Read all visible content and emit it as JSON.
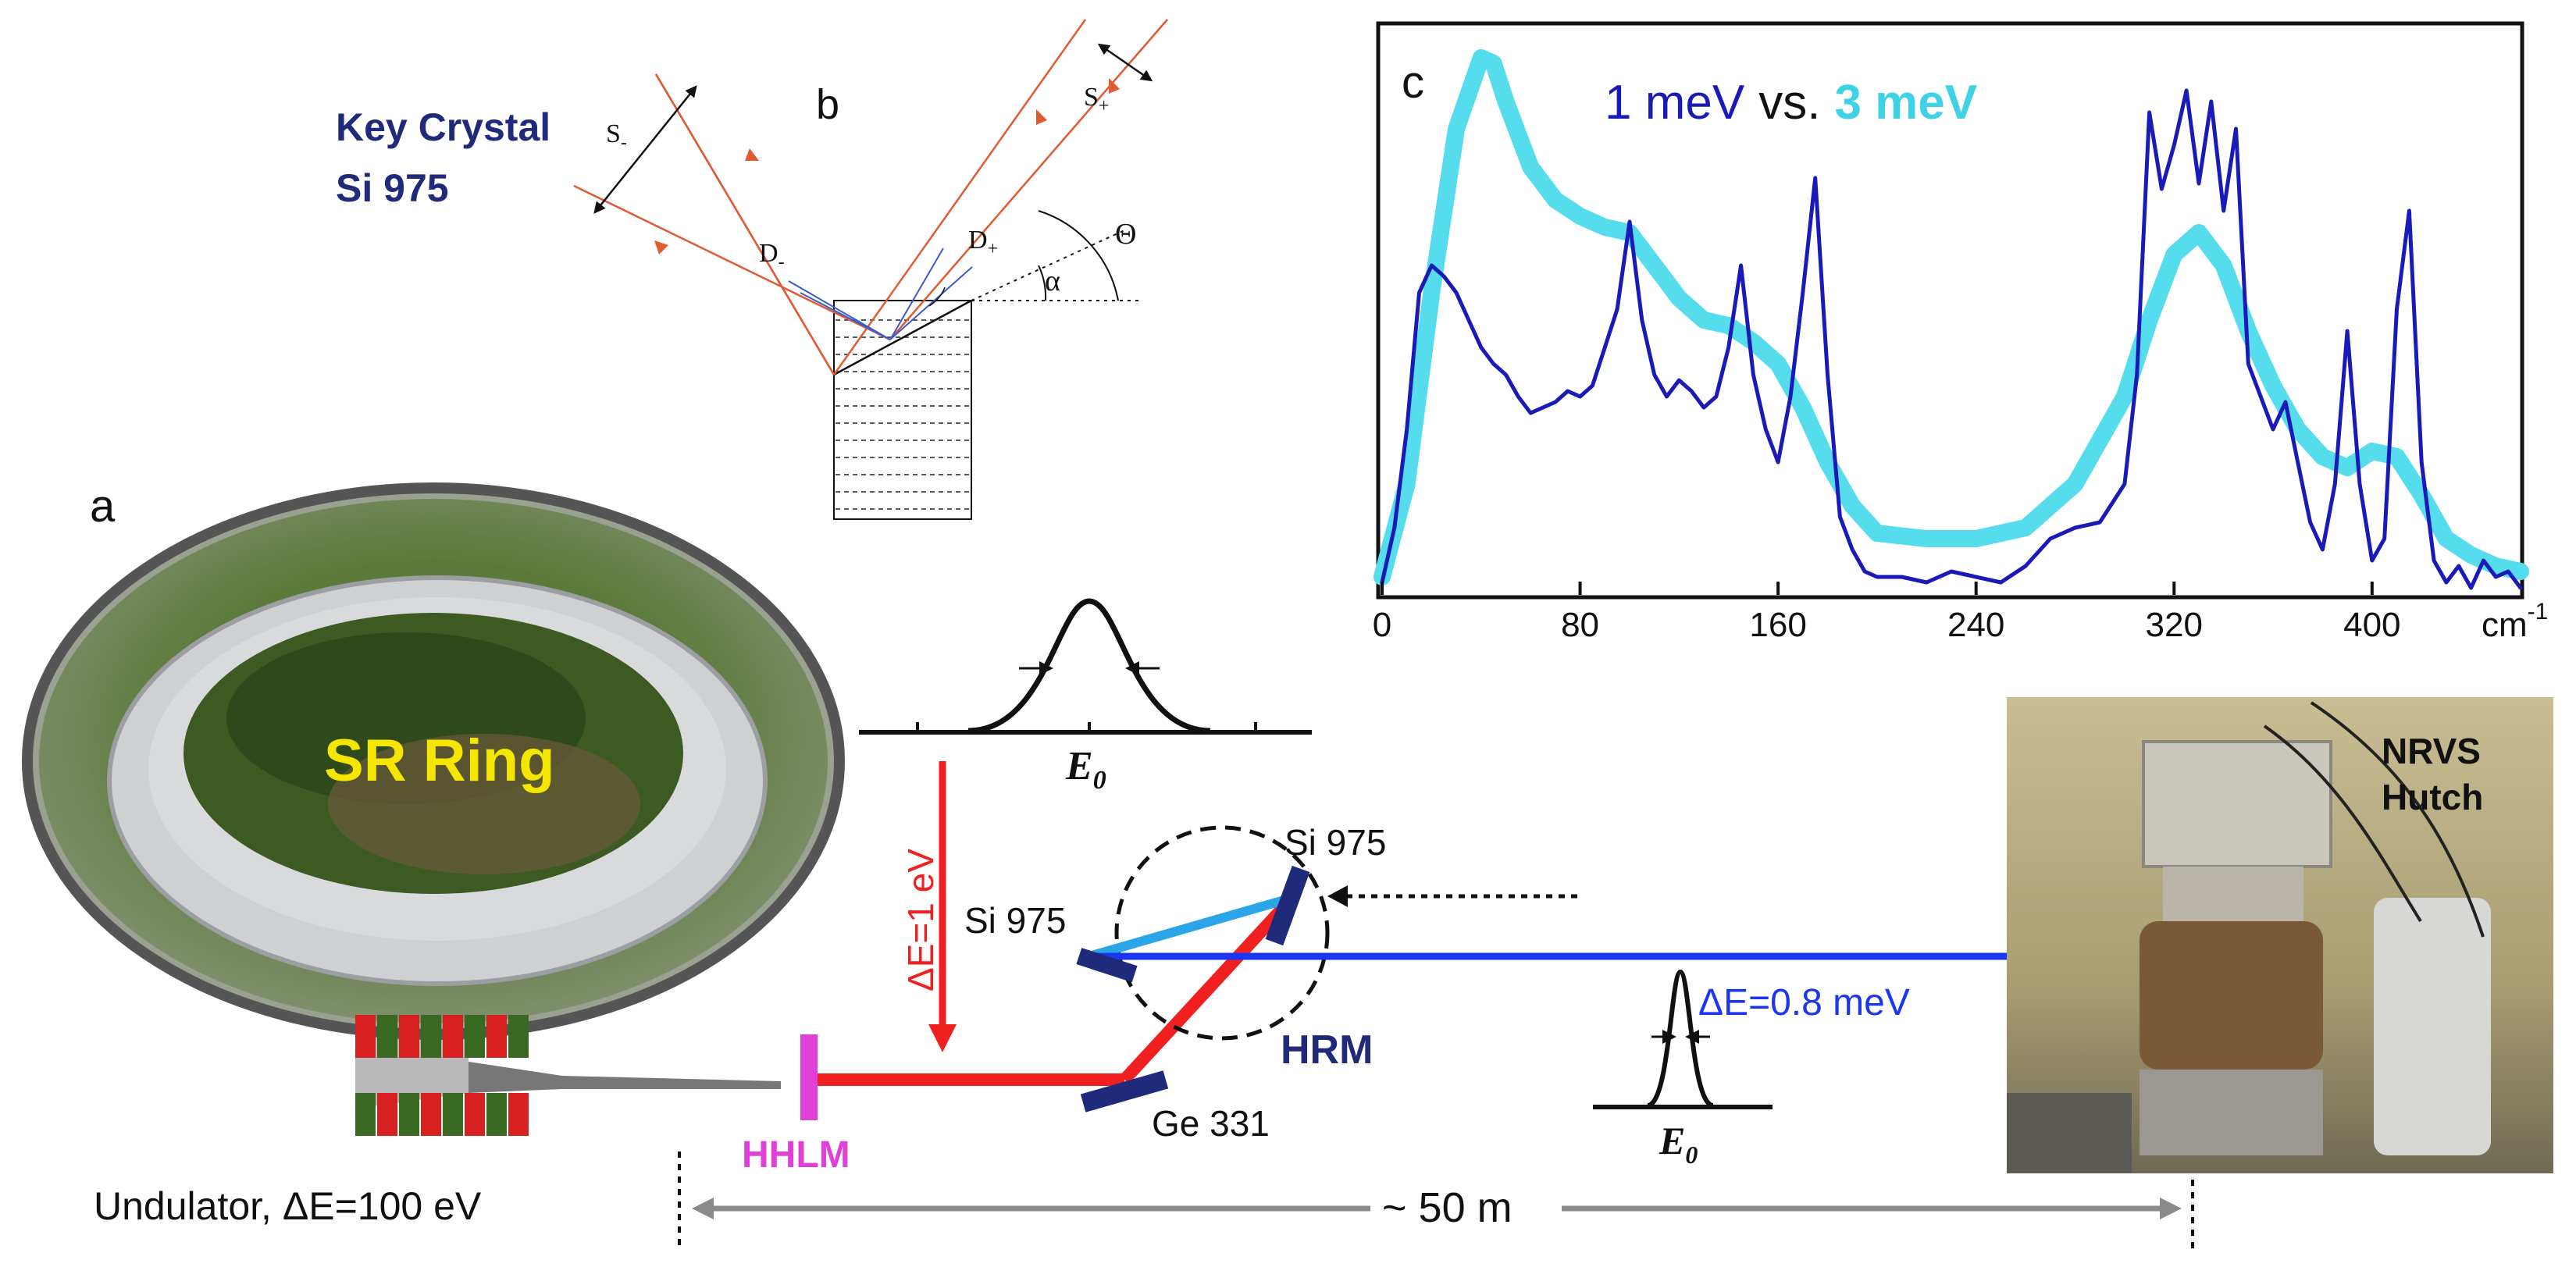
{
  "panel_labels": {
    "a": "a",
    "b": "b",
    "c": "c"
  },
  "crystal": {
    "title_line1": "Key Crystal",
    "title_line2": "Si 975",
    "s_minus": "S",
    "s_minus_sub": "-",
    "s_plus": "S",
    "s_plus_sub": "+",
    "d_minus": "D",
    "d_minus_sub": "-",
    "d_plus": "D",
    "d_plus_sub": "+",
    "theta": "Θ",
    "alpha": "α"
  },
  "ring": {
    "label": "SR Ring",
    "undulator_label": "Undulator, ΔE=100 eV"
  },
  "beamline": {
    "hhlm": "HHLM",
    "hrm": "HRM",
    "ge331": "Ge 331",
    "si975_left": "Si 975",
    "si975_right": "Si 975",
    "delta_e_1ev": "ΔE=1 eV",
    "delta_e_08mev": "ΔE=0.8 meV",
    "e0_top": "E",
    "e0_top_sub": "0",
    "e0_bottom": "E",
    "e0_bottom_sub": "0",
    "distance": "~ 50 m"
  },
  "hutch": {
    "line1": "NRVS",
    "line2": "Hutch"
  },
  "chart_data": {
    "type": "line",
    "title_part1": "1 meV",
    "title_part2": "vs.",
    "title_part3": "3 meV",
    "xlabel": "cm",
    "xlabel_sup": "-1",
    "ylabel": "",
    "xlim": [
      0,
      460
    ],
    "ylim": [
      0,
      1.0
    ],
    "xticks": [
      "0",
      "80",
      "160",
      "240",
      "320",
      "400"
    ],
    "xtick_values": [
      0,
      80,
      160,
      240,
      320,
      400
    ],
    "series": [
      {
        "name": "1 meV",
        "color": "#1a1ab8",
        "x": [
          0,
          5,
          10,
          15,
          20,
          25,
          30,
          35,
          40,
          45,
          50,
          55,
          60,
          65,
          70,
          75,
          80,
          85,
          90,
          95,
          100,
          105,
          110,
          115,
          120,
          125,
          130,
          135,
          140,
          145,
          150,
          155,
          160,
          165,
          170,
          175,
          180,
          185,
          190,
          195,
          200,
          210,
          220,
          230,
          240,
          250,
          260,
          270,
          280,
          290,
          300,
          305,
          310,
          315,
          320,
          325,
          330,
          335,
          340,
          345,
          350,
          355,
          360,
          365,
          370,
          375,
          380,
          385,
          390,
          395,
          400,
          405,
          410,
          415,
          420,
          425,
          430,
          435,
          440,
          445,
          450,
          455,
          460
        ],
        "y": [
          0.02,
          0.12,
          0.3,
          0.55,
          0.6,
          0.58,
          0.55,
          0.5,
          0.45,
          0.42,
          0.4,
          0.36,
          0.33,
          0.34,
          0.35,
          0.37,
          0.36,
          0.38,
          0.45,
          0.52,
          0.68,
          0.5,
          0.4,
          0.36,
          0.39,
          0.37,
          0.34,
          0.36,
          0.45,
          0.6,
          0.4,
          0.3,
          0.24,
          0.36,
          0.55,
          0.76,
          0.4,
          0.14,
          0.08,
          0.04,
          0.03,
          0.03,
          0.02,
          0.04,
          0.03,
          0.02,
          0.05,
          0.1,
          0.12,
          0.13,
          0.2,
          0.4,
          0.88,
          0.74,
          0.82,
          0.92,
          0.75,
          0.9,
          0.7,
          0.85,
          0.42,
          0.36,
          0.3,
          0.35,
          0.24,
          0.13,
          0.08,
          0.2,
          0.48,
          0.2,
          0.06,
          0.1,
          0.52,
          0.7,
          0.24,
          0.06,
          0.02,
          0.05,
          0.01,
          0.06,
          0.03,
          0.04,
          0.01
        ]
      },
      {
        "name": "3 meV",
        "color": "#55dded",
        "x": [
          0,
          10,
          20,
          30,
          40,
          45,
          50,
          60,
          70,
          80,
          90,
          100,
          110,
          120,
          130,
          140,
          150,
          160,
          170,
          180,
          190,
          200,
          220,
          240,
          260,
          280,
          300,
          310,
          320,
          330,
          340,
          350,
          360,
          370,
          380,
          390,
          400,
          410,
          420,
          430,
          440,
          450,
          460
        ],
        "y": [
          0.03,
          0.2,
          0.55,
          0.85,
          0.98,
          0.97,
          0.9,
          0.78,
          0.72,
          0.69,
          0.67,
          0.66,
          0.6,
          0.54,
          0.5,
          0.49,
          0.46,
          0.42,
          0.34,
          0.24,
          0.16,
          0.11,
          0.1,
          0.1,
          0.12,
          0.2,
          0.36,
          0.5,
          0.62,
          0.66,
          0.6,
          0.48,
          0.38,
          0.3,
          0.25,
          0.23,
          0.26,
          0.25,
          0.18,
          0.1,
          0.07,
          0.05,
          0.04
        ]
      }
    ]
  }
}
